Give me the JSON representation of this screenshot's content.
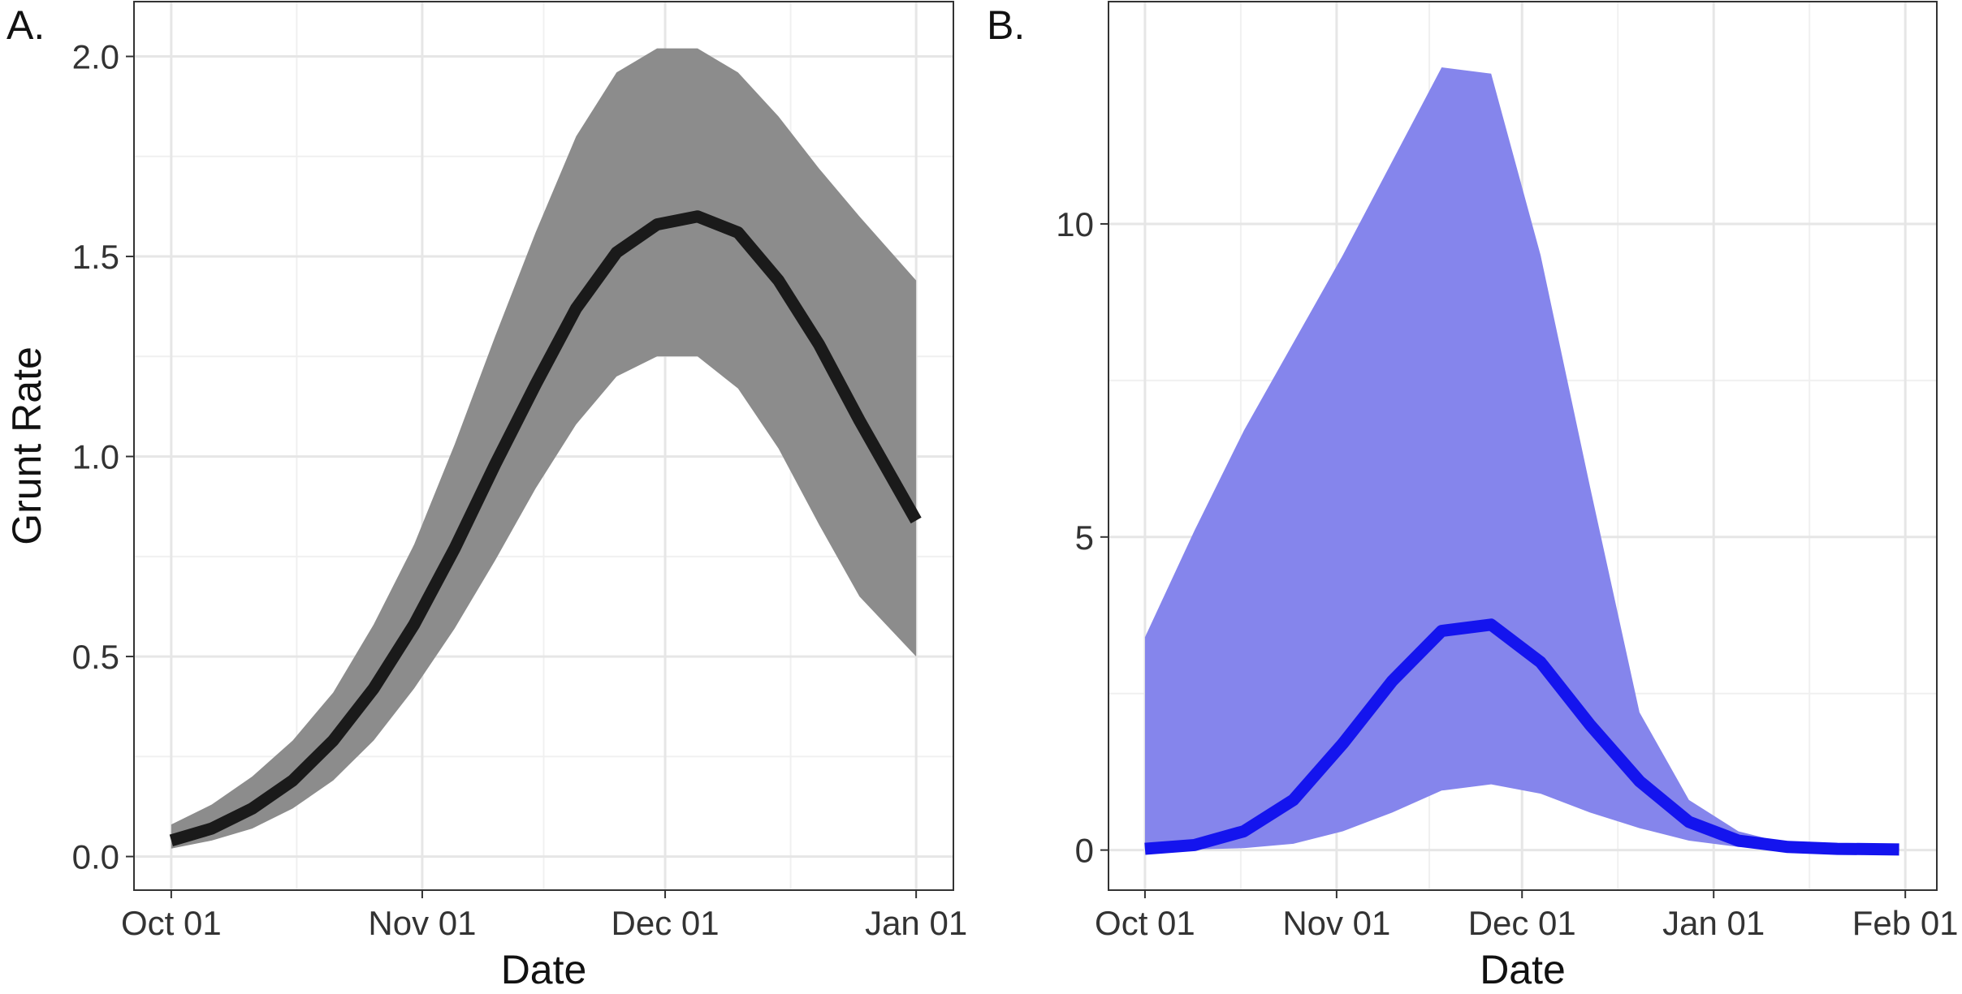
{
  "chart_data": [
    {
      "type": "line",
      "label": "A.",
      "xlabel": "Date",
      "ylabel": "Grunt Rate",
      "x": [
        0,
        5,
        10,
        15,
        20,
        25,
        30,
        35,
        40,
        45,
        50,
        55,
        60,
        65,
        70,
        75,
        80,
        85,
        92
      ],
      "values": [
        0.04,
        0.07,
        0.12,
        0.19,
        0.29,
        0.42,
        0.58,
        0.77,
        0.98,
        1.18,
        1.37,
        1.51,
        1.58,
        1.6,
        1.56,
        1.44,
        1.28,
        1.09,
        0.84
      ],
      "upper": [
        0.08,
        0.13,
        0.2,
        0.29,
        0.41,
        0.58,
        0.78,
        1.03,
        1.3,
        1.56,
        1.8,
        1.96,
        2.02,
        2.02,
        1.96,
        1.85,
        1.72,
        1.6,
        1.44
      ],
      "lower": [
        0.02,
        0.04,
        0.07,
        0.12,
        0.19,
        0.29,
        0.42,
        0.57,
        0.74,
        0.92,
        1.08,
        1.2,
        1.25,
        1.25,
        1.17,
        1.02,
        0.83,
        0.65,
        0.5
      ],
      "color": "#1a1a1a",
      "band_color": "#8c8c8c",
      "xlim": [
        -4.6,
        96.6
      ],
      "xticks": [
        {
          "value": 0,
          "label": "Oct 01"
        },
        {
          "value": 31,
          "label": "Nov 01"
        },
        {
          "value": 61,
          "label": "Dec 01"
        },
        {
          "value": 92,
          "label": "Jan 01"
        }
      ],
      "ylim": [
        -0.084,
        2.137
      ],
      "yticks": [
        {
          "value": 0,
          "label": "0.0"
        },
        0.5,
        {
          "value": 1,
          "label": "1.0"
        },
        1.5,
        {
          "value": 2,
          "label": "2.0"
        }
      ],
      "grid": true
    },
    {
      "type": "line",
      "label": "B.",
      "xlabel": "Date",
      "x": [
        0,
        8,
        16,
        24,
        32,
        40,
        48,
        56,
        64,
        72,
        80,
        88,
        96,
        104,
        112,
        122
      ],
      "values": [
        0.02,
        0.08,
        0.3,
        0.8,
        1.7,
        2.7,
        3.5,
        3.6,
        3.0,
        2.0,
        1.1,
        0.45,
        0.15,
        0.05,
        0.02,
        0.01
      ],
      "upper": [
        3.4,
        5.1,
        6.7,
        8.1,
        9.5,
        11.0,
        12.5,
        12.4,
        9.5,
        5.8,
        2.2,
        0.8,
        0.3,
        0.1,
        0.05,
        0.03
      ],
      "lower": [
        0,
        0.01,
        0.03,
        0.1,
        0.3,
        0.6,
        0.95,
        1.05,
        0.9,
        0.6,
        0.35,
        0.15,
        0.05,
        0.02,
        0.01,
        0
      ],
      "color": "#1414ee",
      "band_color": "#8585ec",
      "xlim": [
        -5.9,
        128.1
      ],
      "xticks": [
        {
          "value": 0,
          "label": "Oct 01"
        },
        {
          "value": 31,
          "label": "Nov 01"
        },
        {
          "value": 61,
          "label": "Dec 01"
        },
        {
          "value": 92,
          "label": "Jan 01"
        },
        {
          "value": 123,
          "label": "Feb 01"
        }
      ],
      "ylim": [
        -0.64,
        13.55
      ],
      "yticks": [
        0,
        5,
        10
      ],
      "grid": true
    }
  ]
}
